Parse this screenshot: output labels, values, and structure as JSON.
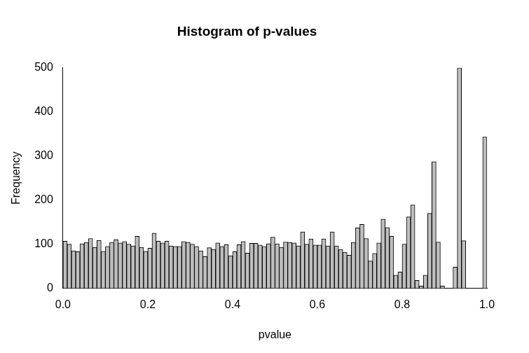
{
  "chart_data": {
    "type": "histogram",
    "title": "Histogram of p-values",
    "x_label": "pvalue",
    "y_label": "Frequency",
    "bins": [
      0,
      0.01,
      0.02,
      0.03,
      0.04,
      0.05,
      0.06,
      0.07,
      0.08,
      0.09,
      0.1,
      0.11,
      0.12,
      0.13,
      0.14,
      0.15,
      0.16,
      0.17,
      0.18,
      0.19,
      0.2,
      0.21,
      0.22,
      0.23,
      0.24,
      0.25,
      0.26,
      0.27,
      0.28,
      0.29,
      0.3,
      0.31,
      0.32,
      0.33,
      0.34,
      0.35,
      0.36,
      0.37,
      0.38,
      0.39,
      0.4,
      0.41,
      0.42,
      0.43,
      0.44,
      0.45,
      0.46,
      0.47,
      0.48,
      0.49,
      0.5,
      0.51,
      0.52,
      0.53,
      0.54,
      0.55,
      0.56,
      0.57,
      0.58,
      0.59,
      0.6,
      0.61,
      0.62,
      0.63,
      0.64,
      0.65,
      0.66,
      0.67,
      0.68,
      0.69,
      0.7,
      0.71,
      0.72,
      0.73,
      0.74,
      0.75,
      0.76,
      0.77,
      0.78,
      0.79,
      0.8,
      0.81,
      0.82,
      0.83,
      0.84,
      0.85,
      0.86,
      0.87,
      0.88,
      0.89,
      0.9,
      0.91,
      0.92,
      0.93,
      0.94,
      0.95,
      0.96,
      0.97,
      0.98,
      0.99,
      1
    ],
    "values": [
      107,
      100,
      85,
      83,
      101,
      104,
      113,
      93,
      109,
      84,
      95,
      104,
      110,
      103,
      106,
      100,
      96,
      118,
      93,
      84,
      91,
      125,
      107,
      103,
      107,
      96,
      95,
      95,
      106,
      104,
      100,
      95,
      85,
      72,
      92,
      88,
      103,
      95,
      99,
      74,
      83,
      99,
      106,
      80,
      102,
      102,
      98,
      95,
      101,
      116,
      101,
      93,
      105,
      104,
      103,
      96,
      128,
      100,
      112,
      98,
      98,
      112,
      96,
      128,
      96,
      88,
      82,
      75,
      104,
      137,
      145,
      113,
      62,
      79,
      103,
      157,
      138,
      118,
      30,
      37,
      100,
      162,
      189,
      18,
      5,
      30,
      170,
      287,
      105,
      5,
      0,
      0,
      48,
      500,
      108,
      0,
      0,
      0,
      0,
      343
    ],
    "color": "#bebebe",
    "xlim": [
      0,
      1
    ],
    "xticks": [
      {
        "value": 0,
        "label": "0.0"
      },
      {
        "value": 0.2,
        "label": "0.2"
      },
      {
        "value": 0.4,
        "label": "0.4"
      },
      {
        "value": 0.6,
        "label": "0.6"
      },
      {
        "value": 0.8,
        "label": "0.8"
      },
      {
        "value": 1,
        "label": "1.0"
      }
    ],
    "ylim": [
      0,
      500
    ],
    "yticks": [
      0,
      100,
      200,
      300,
      400,
      500
    ],
    "grid": false
  }
}
